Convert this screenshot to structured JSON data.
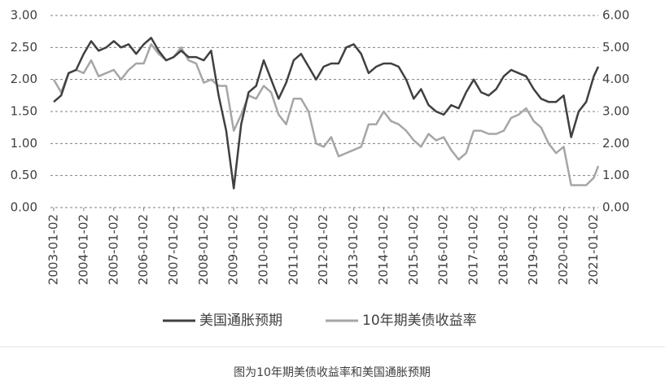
{
  "chart_data": {
    "type": "line",
    "x": [
      "2003-01-02",
      "2003-04-02",
      "2003-07-02",
      "2003-10-02",
      "2004-01-02",
      "2004-04-02",
      "2004-07-02",
      "2004-10-02",
      "2005-01-02",
      "2005-04-02",
      "2005-07-02",
      "2005-10-02",
      "2006-01-02",
      "2006-04-02",
      "2006-07-02",
      "2006-10-02",
      "2007-01-02",
      "2007-04-02",
      "2007-07-02",
      "2007-10-02",
      "2008-01-02",
      "2008-04-02",
      "2008-07-02",
      "2008-10-02",
      "2009-01-02",
      "2009-04-02",
      "2009-07-02",
      "2009-10-02",
      "2010-01-02",
      "2010-04-02",
      "2010-07-02",
      "2010-10-02",
      "2011-01-02",
      "2011-04-02",
      "2011-07-02",
      "2011-10-02",
      "2012-01-02",
      "2012-04-02",
      "2012-07-02",
      "2012-10-02",
      "2013-01-02",
      "2013-04-02",
      "2013-07-02",
      "2013-10-02",
      "2014-01-02",
      "2014-04-02",
      "2014-07-02",
      "2014-10-02",
      "2015-01-02",
      "2015-04-02",
      "2015-07-02",
      "2015-10-02",
      "2016-01-02",
      "2016-04-02",
      "2016-07-02",
      "2016-10-02",
      "2017-01-02",
      "2017-04-02",
      "2017-07-02",
      "2017-10-02",
      "2018-01-02",
      "2018-04-02",
      "2018-07-02",
      "2018-10-02",
      "2019-01-02",
      "2019-04-02",
      "2019-07-02",
      "2019-10-02",
      "2020-01-02",
      "2020-04-02",
      "2020-07-02",
      "2020-10-02",
      "2021-01-02",
      "2021-02-26"
    ],
    "series": [
      {
        "name": "美国通胀预期",
        "color": "#404040",
        "axis": "y",
        "values": [
          1.65,
          1.75,
          2.1,
          2.15,
          2.4,
          2.6,
          2.45,
          2.5,
          2.6,
          2.5,
          2.55,
          2.4,
          2.55,
          2.65,
          2.45,
          2.3,
          2.35,
          2.45,
          2.35,
          2.35,
          2.3,
          2.45,
          1.75,
          1.2,
          0.3,
          1.3,
          1.8,
          1.9,
          2.3,
          2.0,
          1.7,
          1.95,
          2.3,
          2.4,
          2.2,
          2.0,
          2.2,
          2.25,
          2.25,
          2.5,
          2.55,
          2.4,
          2.1,
          2.2,
          2.25,
          2.25,
          2.2,
          2.0,
          1.7,
          1.85,
          1.6,
          1.5,
          1.45,
          1.6,
          1.55,
          1.8,
          2.0,
          1.8,
          1.75,
          1.85,
          2.05,
          2.15,
          2.1,
          2.05,
          1.85,
          1.7,
          1.65,
          1.65,
          1.75,
          1.1,
          1.5,
          1.65,
          2.05,
          2.2
        ]
      },
      {
        "name": "10年期美债收益率",
        "color": "#a6a6a6",
        "axis": "y2",
        "values": [
          4.0,
          3.6,
          4.2,
          4.3,
          4.2,
          4.6,
          4.1,
          4.2,
          4.3,
          4.0,
          4.3,
          4.5,
          4.5,
          5.1,
          4.8,
          4.6,
          4.7,
          5.0,
          4.6,
          4.5,
          3.9,
          4.0,
          3.8,
          3.8,
          2.4,
          2.9,
          3.5,
          3.4,
          3.8,
          3.6,
          2.9,
          2.6,
          3.4,
          3.4,
          3.0,
          2.0,
          1.9,
          2.2,
          1.6,
          1.7,
          1.8,
          1.9,
          2.6,
          2.6,
          3.0,
          2.7,
          2.6,
          2.4,
          2.1,
          1.9,
          2.3,
          2.1,
          2.2,
          1.8,
          1.5,
          1.7,
          2.4,
          2.4,
          2.3,
          2.3,
          2.4,
          2.8,
          2.9,
          3.1,
          2.7,
          2.5,
          2.0,
          1.7,
          1.9,
          0.7,
          0.7,
          0.7,
          0.93,
          1.3
        ]
      }
    ],
    "xlim": [
      "2003-01-02",
      "2021-02-26"
    ],
    "xticks": [
      "2003-01-02",
      "2004-01-02",
      "2005-01-02",
      "2006-01-02",
      "2007-01-02",
      "2008-01-02",
      "2009-01-02",
      "2010-01-02",
      "2011-01-02",
      "2012-01-02",
      "2013-01-02",
      "2014-01-02",
      "2015-01-02",
      "2016-01-02",
      "2017-01-02",
      "2018-01-02",
      "2019-01-02",
      "2020-01-02",
      "2021-01-02"
    ],
    "ylim": [
      0,
      3
    ],
    "yticks": [
      {
        "value": 0,
        "label": "0.00"
      },
      {
        "value": 0.5,
        "label": "0.50"
      },
      {
        "value": 1,
        "label": "1.00"
      },
      {
        "value": 1.5,
        "label": "1.50"
      },
      {
        "value": 2,
        "label": "2.00"
      },
      {
        "value": 2.5,
        "label": "2.50"
      },
      {
        "value": 3,
        "label": "3.00"
      }
    ],
    "y2lim": [
      0,
      6
    ],
    "y2ticks": [
      {
        "value": 0,
        "label": "0.00"
      },
      {
        "value": 1,
        "label": "1.00"
      },
      {
        "value": 2,
        "label": "2.00"
      },
      {
        "value": 3,
        "label": "3.00"
      },
      {
        "value": 4,
        "label": "4.00"
      },
      {
        "value": 5,
        "label": "5.00"
      },
      {
        "value": 6,
        "label": "6.00"
      }
    ],
    "grid": true
  },
  "caption": "图为10年期美债收益率和美国通胀预期"
}
